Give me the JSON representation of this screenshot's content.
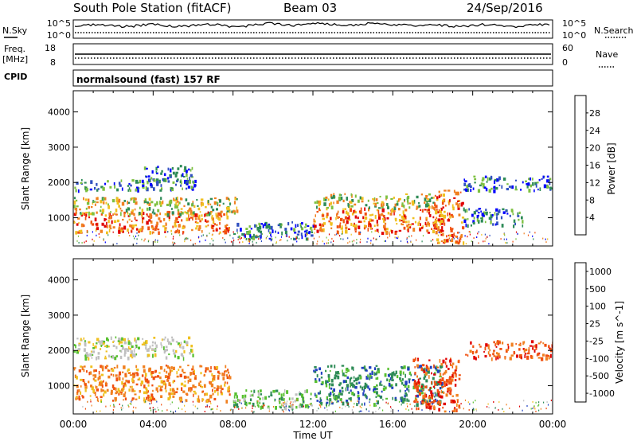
{
  "header": {
    "station": "South Pole Station (fitACF)",
    "beam": "Beam 03",
    "date": "24/Sep/2016"
  },
  "strips": {
    "nsky_label": "N.Sky",
    "nsky_ticks": [
      "10^5",
      "10^0"
    ],
    "nsearch_label": "N.Search",
    "nsearch_ticks": [
      "10^5",
      "10^0"
    ],
    "freq_label_1": "Freq.",
    "freq_label_2": "[MHz]",
    "freq_ticks": [
      "18",
      "8"
    ],
    "nave_label": "Nave",
    "nave_ticks": [
      "60",
      "0"
    ],
    "cpid_label": "CPID",
    "cpid_text": "normalsound (fast) 157 RF"
  },
  "chart_data": [
    {
      "type": "heatmap",
      "panel": "power",
      "xlabel": "",
      "ylabel": "Slant Range [km]",
      "y_ticks": [
        "1000",
        "2000",
        "3000",
        "4000"
      ],
      "xlim_hours": [
        0,
        24
      ],
      "ylim_km": [
        200,
        4600
      ],
      "colorbar": {
        "label": "Power [dB]",
        "ticks": [
          "4",
          "8",
          "12",
          "16",
          "20",
          "24",
          "28"
        ],
        "colors": [
          "#0000ff",
          "#3050c0",
          "#2e8b57",
          "#7dc040",
          "#f0c020",
          "#f08020",
          "#f05010",
          "#e00000"
        ]
      },
      "echo_regions": [
        {
          "t_start": 0.0,
          "t_end": 7.8,
          "range_min": 600,
          "range_max": 1200,
          "level": "high"
        },
        {
          "t_start": 0.0,
          "t_end": 8.2,
          "range_min": 1100,
          "range_max": 1600,
          "level": "medium"
        },
        {
          "t_start": 0.0,
          "t_end": 6.2,
          "range_min": 1800,
          "range_max": 2100,
          "level": "low"
        },
        {
          "t_start": 3.5,
          "t_end": 6.0,
          "range_min": 2100,
          "range_max": 2500,
          "level": "low"
        },
        {
          "t_start": 8.0,
          "t_end": 12.0,
          "range_min": 400,
          "range_max": 900,
          "level": "low"
        },
        {
          "t_start": 12.0,
          "t_end": 18.5,
          "range_min": 600,
          "range_max": 1300,
          "level": "high"
        },
        {
          "t_start": 12.0,
          "t_end": 18.0,
          "range_min": 1300,
          "range_max": 1700,
          "level": "medium"
        },
        {
          "t_start": 18.0,
          "t_end": 19.5,
          "range_min": 300,
          "range_max": 1800,
          "level": "high"
        },
        {
          "t_start": 19.5,
          "t_end": 24.0,
          "range_min": 1800,
          "range_max": 2200,
          "level": "low"
        },
        {
          "t_start": 19.5,
          "t_end": 22.5,
          "range_min": 800,
          "range_max": 1300,
          "level": "low"
        }
      ]
    },
    {
      "type": "heatmap",
      "panel": "velocity",
      "xlabel": "Time UT",
      "ylabel": "Slant Range [km]",
      "x_ticks": [
        "00:00",
        "04:00",
        "08:00",
        "12:00",
        "16:00",
        "20:00",
        "00:00"
      ],
      "y_ticks": [
        "1000",
        "2000",
        "3000",
        "4000"
      ],
      "xlim_hours": [
        0,
        24
      ],
      "ylim_km": [
        200,
        4600
      ],
      "colorbar": {
        "label": "Velocity [m s^-1]",
        "ticks": [
          "1000",
          "500",
          "100",
          "25",
          "-25",
          "-100",
          "-500",
          "-1000"
        ],
        "colors": [
          "#2040c0",
          "#2e8b57",
          "#58c030",
          "#c0c0c0",
          "#f0c020",
          "#f08020",
          "#f05010",
          "#e00000"
        ]
      },
      "echo_regions": [
        {
          "t_start": 0.0,
          "t_end": 7.8,
          "range_min": 600,
          "range_max": 1600,
          "level": "-100"
        },
        {
          "t_start": 0.0,
          "t_end": 6.0,
          "range_min": 1800,
          "range_max": 2400,
          "level": "25"
        },
        {
          "t_start": 8.0,
          "t_end": 12.0,
          "range_min": 400,
          "range_max": 900,
          "level": "100"
        },
        {
          "t_start": 12.0,
          "t_end": 18.5,
          "range_min": 500,
          "range_max": 1600,
          "level": "500"
        },
        {
          "t_start": 17.0,
          "t_end": 19.3,
          "range_min": 300,
          "range_max": 1800,
          "level": "-500"
        },
        {
          "t_start": 19.5,
          "t_end": 24.0,
          "range_min": 1800,
          "range_max": 2300,
          "level": "-500"
        }
      ]
    }
  ]
}
